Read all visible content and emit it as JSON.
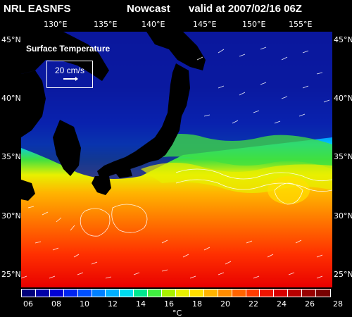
{
  "header": {
    "source": "NRL EASNFS",
    "product": "Nowcast",
    "valid": "valid at 2007/02/16 06Z"
  },
  "map": {
    "title": "Surface Temperature",
    "vector_scale_label": "20 cm/s",
    "lon_labels": [
      "130°E",
      "135°E",
      "140°E",
      "145°E",
      "150°E",
      "155°E"
    ],
    "lat_labels": [
      "45°N",
      "40°N",
      "35°N",
      "30°N",
      "25°N"
    ],
    "lon_range": [
      126,
      158
    ],
    "lat_range": [
      23.5,
      45
    ],
    "colors": {
      "land": "#000000",
      "sst_cold": "#0a0a8c",
      "sst_warm": "#e80000"
    }
  },
  "colorbar": {
    "unit": "°C",
    "labels": [
      "06",
      "08",
      "10",
      "12",
      "14",
      "16",
      "18",
      "20",
      "22",
      "24",
      "26",
      "28"
    ],
    "colors": [
      "#00007a",
      "#0000a8",
      "#0000d4",
      "#0024f0",
      "#0050ff",
      "#0080ff",
      "#00b0ff",
      "#00dcf0",
      "#00e890",
      "#40f040",
      "#a8f000",
      "#e8f000",
      "#ffe000",
      "#ffb400",
      "#ff8c00",
      "#ff6400",
      "#ff3c00",
      "#f01400",
      "#d80000",
      "#b80000",
      "#980000",
      "#780000"
    ]
  }
}
